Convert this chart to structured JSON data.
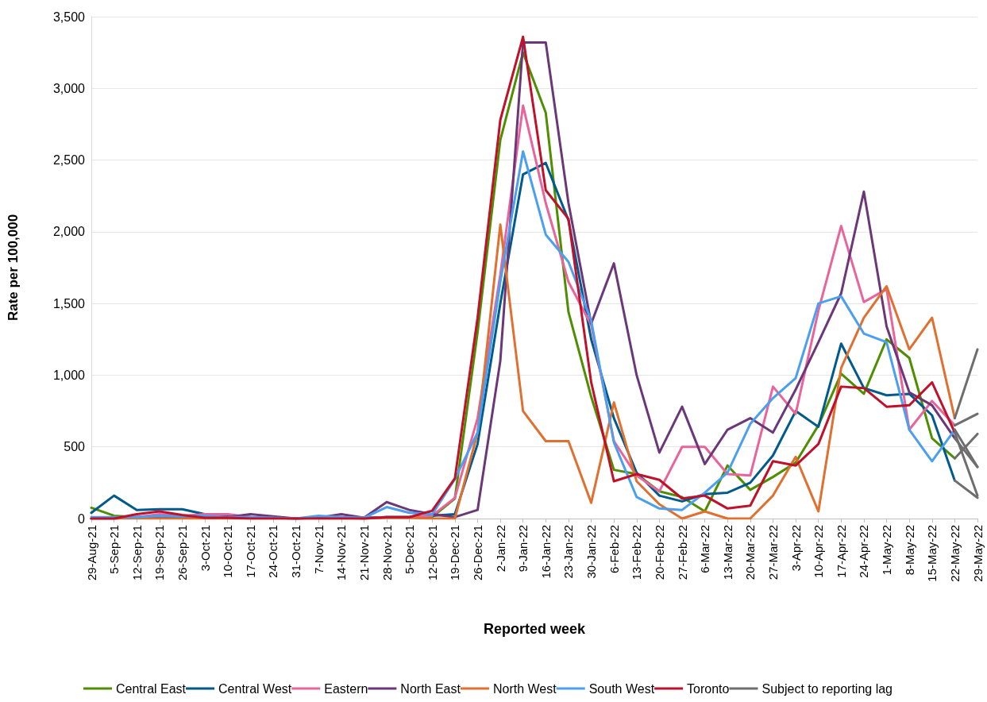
{
  "chart_data": {
    "type": "line",
    "xlabel": "Reported week",
    "ylabel": "Rate per 100,000",
    "categories": [
      "29-Aug-21",
      "5-Sep-21",
      "12-Sep-21",
      "19-Sep-21",
      "26-Sep-21",
      "3-Oct-21",
      "10-Oct-21",
      "17-Oct-21",
      "24-Oct-21",
      "31-Oct-21",
      "7-Nov-21",
      "14-Nov-21",
      "21-Nov-21",
      "28-Nov-21",
      "5-Dec-21",
      "12-Dec-21",
      "19-Dec-21",
      "26-Dec-21",
      "2-Jan-22",
      "9-Jan-22",
      "16-Jan-22",
      "23-Jan-22",
      "30-Jan-22",
      "6-Feb-22",
      "13-Feb-22",
      "20-Feb-22",
      "27-Feb-22",
      "6-Mar-22",
      "13-Mar-22",
      "20-Mar-22",
      "27-Mar-22",
      "3-Apr-22",
      "10-Apr-22",
      "17-Apr-22",
      "24-Apr-22",
      "1-May-22",
      "8-May-22",
      "15-May-22",
      "22-May-22",
      "29-May-22"
    ],
    "ylim": [
      0,
      3500
    ],
    "yticks": [
      0,
      {
        "value": 500,
        "label": "500"
      },
      {
        "value": 1000,
        "label": "1,000"
      },
      {
        "value": 1500,
        "label": "1,500"
      },
      {
        "value": 2000,
        "label": "2,000"
      },
      {
        "value": 2500,
        "label": "2,500"
      },
      {
        "value": 3000,
        "label": "3,000"
      },
      {
        "value": 3500,
        "label": "3,500"
      }
    ],
    "grid": "y",
    "legend": "bottom",
    "marker": "none",
    "line_style": "solid",
    "series": [
      {
        "name": "Central East",
        "color": "#4e8f00",
        "values": [
          75,
          20,
          10,
          10,
          10,
          5,
          5,
          5,
          5,
          0,
          5,
          5,
          0,
          10,
          10,
          10,
          140,
          1300,
          2640,
          3250,
          2830,
          1440,
          850,
          340,
          310,
          190,
          150,
          50,
          370,
          200,
          290,
          390,
          650,
          1010,
          870,
          1250,
          1120,
          560,
          420,
          null
        ]
      },
      {
        "name": "Central West",
        "color": "#005a8c",
        "values": [
          40,
          160,
          60,
          65,
          65,
          30,
          20,
          10,
          5,
          0,
          10,
          10,
          5,
          10,
          10,
          20,
          30,
          520,
          1500,
          2400,
          2480,
          2080,
          1250,
          700,
          320,
          160,
          120,
          170,
          180,
          250,
          440,
          750,
          640,
          1220,
          910,
          860,
          870,
          720,
          265,
          null
        ]
      },
      {
        "name": "Eastern",
        "color": "#e8649a",
        "values": [
          0,
          0,
          10,
          30,
          20,
          30,
          30,
          10,
          5,
          0,
          5,
          5,
          0,
          10,
          10,
          20,
          145,
          700,
          1700,
          2880,
          2200,
          1650,
          1350,
          540,
          300,
          190,
          500,
          500,
          310,
          300,
          920,
          730,
          1450,
          2040,
          1510,
          1600,
          620,
          820,
          650,
          null
        ]
      },
      {
        "name": "North East",
        "color": "#6b3779",
        "values": [
          0,
          0,
          10,
          10,
          10,
          10,
          10,
          30,
          15,
          0,
          5,
          30,
          5,
          115,
          60,
          30,
          10,
          60,
          1100,
          3320,
          3320,
          2200,
          1360,
          1780,
          1000,
          460,
          780,
          380,
          620,
          700,
          600,
          900,
          1230,
          1570,
          2280,
          1340,
          880,
          790,
          560,
          null
        ]
      },
      {
        "name": "North West",
        "color": "#e07030",
        "values": [
          0,
          0,
          0,
          0,
          0,
          0,
          0,
          0,
          0,
          0,
          0,
          0,
          0,
          5,
          5,
          0,
          0,
          600,
          2050,
          750,
          540,
          540,
          110,
          810,
          260,
          100,
          0,
          50,
          0,
          0,
          160,
          430,
          50,
          1050,
          1400,
          1620,
          1180,
          1400,
          700,
          null
        ]
      },
      {
        "name": "South West",
        "color": "#4a9ff0",
        "values": [
          10,
          10,
          10,
          20,
          15,
          20,
          10,
          10,
          5,
          0,
          20,
          10,
          5,
          80,
          40,
          30,
          275,
          600,
          1650,
          2560,
          1980,
          1790,
          1380,
          530,
          150,
          70,
          60,
          180,
          320,
          660,
          840,
          980,
          1500,
          1550,
          1290,
          1230,
          620,
          400,
          620,
          null
        ]
      },
      {
        "name": "Toronto",
        "color": "#c0112b",
        "values": [
          0,
          0,
          30,
          50,
          25,
          5,
          5,
          0,
          0,
          0,
          0,
          0,
          0,
          10,
          10,
          55,
          280,
          1400,
          2780,
          3360,
          2290,
          2090,
          950,
          260,
          310,
          270,
          140,
          160,
          70,
          90,
          400,
          370,
          520,
          920,
          910,
          780,
          790,
          950,
          600,
          null
        ]
      },
      {
        "name": "Subject to reporting lag",
        "color": "#6e6e6e",
        "values": [
          null,
          null,
          null,
          null,
          null,
          null,
          null,
          null,
          null,
          null,
          null,
          null,
          null,
          null,
          null,
          null,
          null,
          null,
          null,
          null,
          null,
          null,
          null,
          null,
          null,
          null,
          null,
          null,
          null,
          null,
          null,
          null,
          null,
          null,
          null,
          null,
          null,
          null,
          420,
          590
        ]
      },
      {
        "color": "#6e6e6e",
        "values": [
          null,
          null,
          null,
          null,
          null,
          null,
          null,
          null,
          null,
          null,
          null,
          null,
          null,
          null,
          null,
          null,
          null,
          null,
          null,
          null,
          null,
          null,
          null,
          null,
          null,
          null,
          null,
          null,
          null,
          null,
          null,
          null,
          null,
          null,
          null,
          null,
          null,
          null,
          265,
          145
        ]
      },
      {
        "color": "#6e6e6e",
        "values": [
          null,
          null,
          null,
          null,
          null,
          null,
          null,
          null,
          null,
          null,
          null,
          null,
          null,
          null,
          null,
          null,
          null,
          null,
          null,
          null,
          null,
          null,
          null,
          null,
          null,
          null,
          null,
          null,
          null,
          null,
          null,
          null,
          null,
          null,
          null,
          null,
          null,
          null,
          650,
          730
        ]
      },
      {
        "color": "#6e6e6e",
        "values": [
          null,
          null,
          null,
          null,
          null,
          null,
          null,
          null,
          null,
          null,
          null,
          null,
          null,
          null,
          null,
          null,
          null,
          null,
          null,
          null,
          null,
          null,
          null,
          null,
          null,
          null,
          null,
          null,
          null,
          null,
          null,
          null,
          null,
          null,
          null,
          null,
          null,
          null,
          560,
          360
        ]
      },
      {
        "color": "#6e6e6e",
        "values": [
          null,
          null,
          null,
          null,
          null,
          null,
          null,
          null,
          null,
          null,
          null,
          null,
          null,
          null,
          null,
          null,
          null,
          null,
          null,
          null,
          null,
          null,
          null,
          null,
          null,
          null,
          null,
          null,
          null,
          null,
          null,
          null,
          null,
          null,
          null,
          null,
          null,
          null,
          700,
          1180
        ]
      },
      {
        "color": "#6e6e6e",
        "values": [
          null,
          null,
          null,
          null,
          null,
          null,
          null,
          null,
          null,
          null,
          null,
          null,
          null,
          null,
          null,
          null,
          null,
          null,
          null,
          null,
          null,
          null,
          null,
          null,
          null,
          null,
          null,
          null,
          null,
          null,
          null,
          null,
          null,
          null,
          null,
          null,
          null,
          null,
          620,
          360
        ]
      },
      {
        "color": "#6e6e6e",
        "values": [
          null,
          null,
          null,
          null,
          null,
          null,
          null,
          null,
          null,
          null,
          null,
          null,
          null,
          null,
          null,
          null,
          null,
          null,
          null,
          null,
          null,
          null,
          null,
          null,
          null,
          null,
          null,
          null,
          null,
          null,
          null,
          null,
          null,
          null,
          null,
          null,
          null,
          null,
          600,
          160
        ]
      }
    ]
  }
}
